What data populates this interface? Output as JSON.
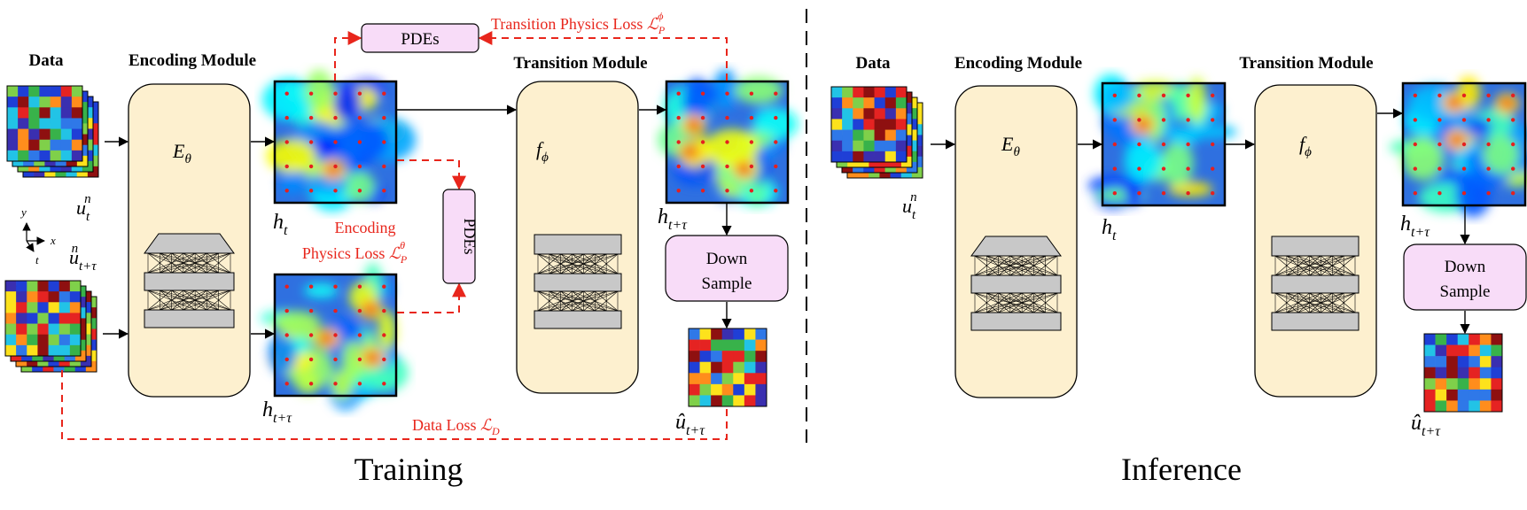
{
  "training": {
    "caption": "Training",
    "data_label": "Data",
    "encoding_module_label": "Encoding Module",
    "transition_module_label": "Transition Module",
    "encoder_symbol": "E",
    "encoder_sub": "θ",
    "transition_symbol": "f",
    "transition_sub": "ϕ",
    "pdes_top_label": "PDEs",
    "pdes_side_label": "PDEs",
    "down_sample_line1": "Down",
    "down_sample_line2": "Sample",
    "transition_loss_text": "Transition Physics Loss ",
    "transition_loss_sym": "ℒ",
    "transition_loss_sub": "P",
    "transition_loss_sup": "ϕ",
    "encoding_loss_line1": "Encoding",
    "encoding_loss_line2": "Physics Loss ",
    "encoding_loss_sym": "ℒ",
    "encoding_loss_sub": "P",
    "encoding_loss_sup": "θ",
    "data_loss_text": "Data Loss ",
    "data_loss_sym": "ℒ",
    "data_loss_sub": "D",
    "u_t_main": "u",
    "u_t_sub": "t",
    "u_t_sup": "n",
    "u_ttau_main": "u",
    "u_ttau_sub": "t+τ",
    "u_ttau_sup": "n",
    "h_t_main": "h",
    "h_t_sub": "t",
    "h_ttau_main": "h",
    "h_ttau_sub": "t+τ",
    "h_out_main": "h",
    "h_out_sub": "t+τ",
    "uhat_main": "û",
    "uhat_sub": "t+τ",
    "axis_x": "x",
    "axis_y": "y",
    "axis_t": "t"
  },
  "inference": {
    "caption": "Inference",
    "data_label": "Data",
    "encoding_module_label": "Encoding Module",
    "transition_module_label": "Transition Module",
    "encoder_symbol": "E",
    "encoder_sub": "θ",
    "transition_symbol": "f",
    "transition_sub": "ϕ",
    "down_sample_line1": "Down",
    "down_sample_line2": "Sample",
    "u_t_main": "u",
    "u_t_sub": "t",
    "u_t_sup": "n",
    "h_t_main": "h",
    "h_t_sub": "t",
    "h_out_main": "h",
    "h_out_sub": "t+τ",
    "uhat_main": "û",
    "uhat_sub": "t+τ"
  },
  "colors": {
    "module_fill": "#fdf0cf",
    "pdes_fill": "#f8dcf8",
    "loss_red": "#e8261c",
    "layer_gray": "#c8c8c8"
  }
}
